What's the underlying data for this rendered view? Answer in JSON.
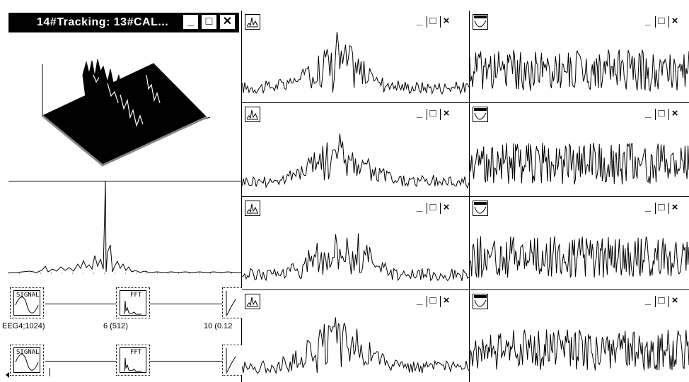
{
  "tracking_window": {
    "title": "14#Tracking: 13#CAL...",
    "controls": {
      "minimize": "_",
      "maximize": "□",
      "close": "✕"
    }
  },
  "panel_controls": {
    "minimize": "_",
    "maximize": "□",
    "close": "×"
  },
  "pipeline": {
    "row1": {
      "signal_label": "SIGNAL",
      "fft_label": "FFT",
      "caption_signal": "EEG4;1024)",
      "caption_fft": "6 (512)",
      "caption_next": "10 (0.12"
    },
    "row2": {
      "signal_label": "SIGNAL",
      "fft_label": "FFT"
    }
  },
  "icons": {
    "spectrum_panel_icon": "spectrum-icon",
    "signal_panel_icon": "signal-icon"
  }
}
